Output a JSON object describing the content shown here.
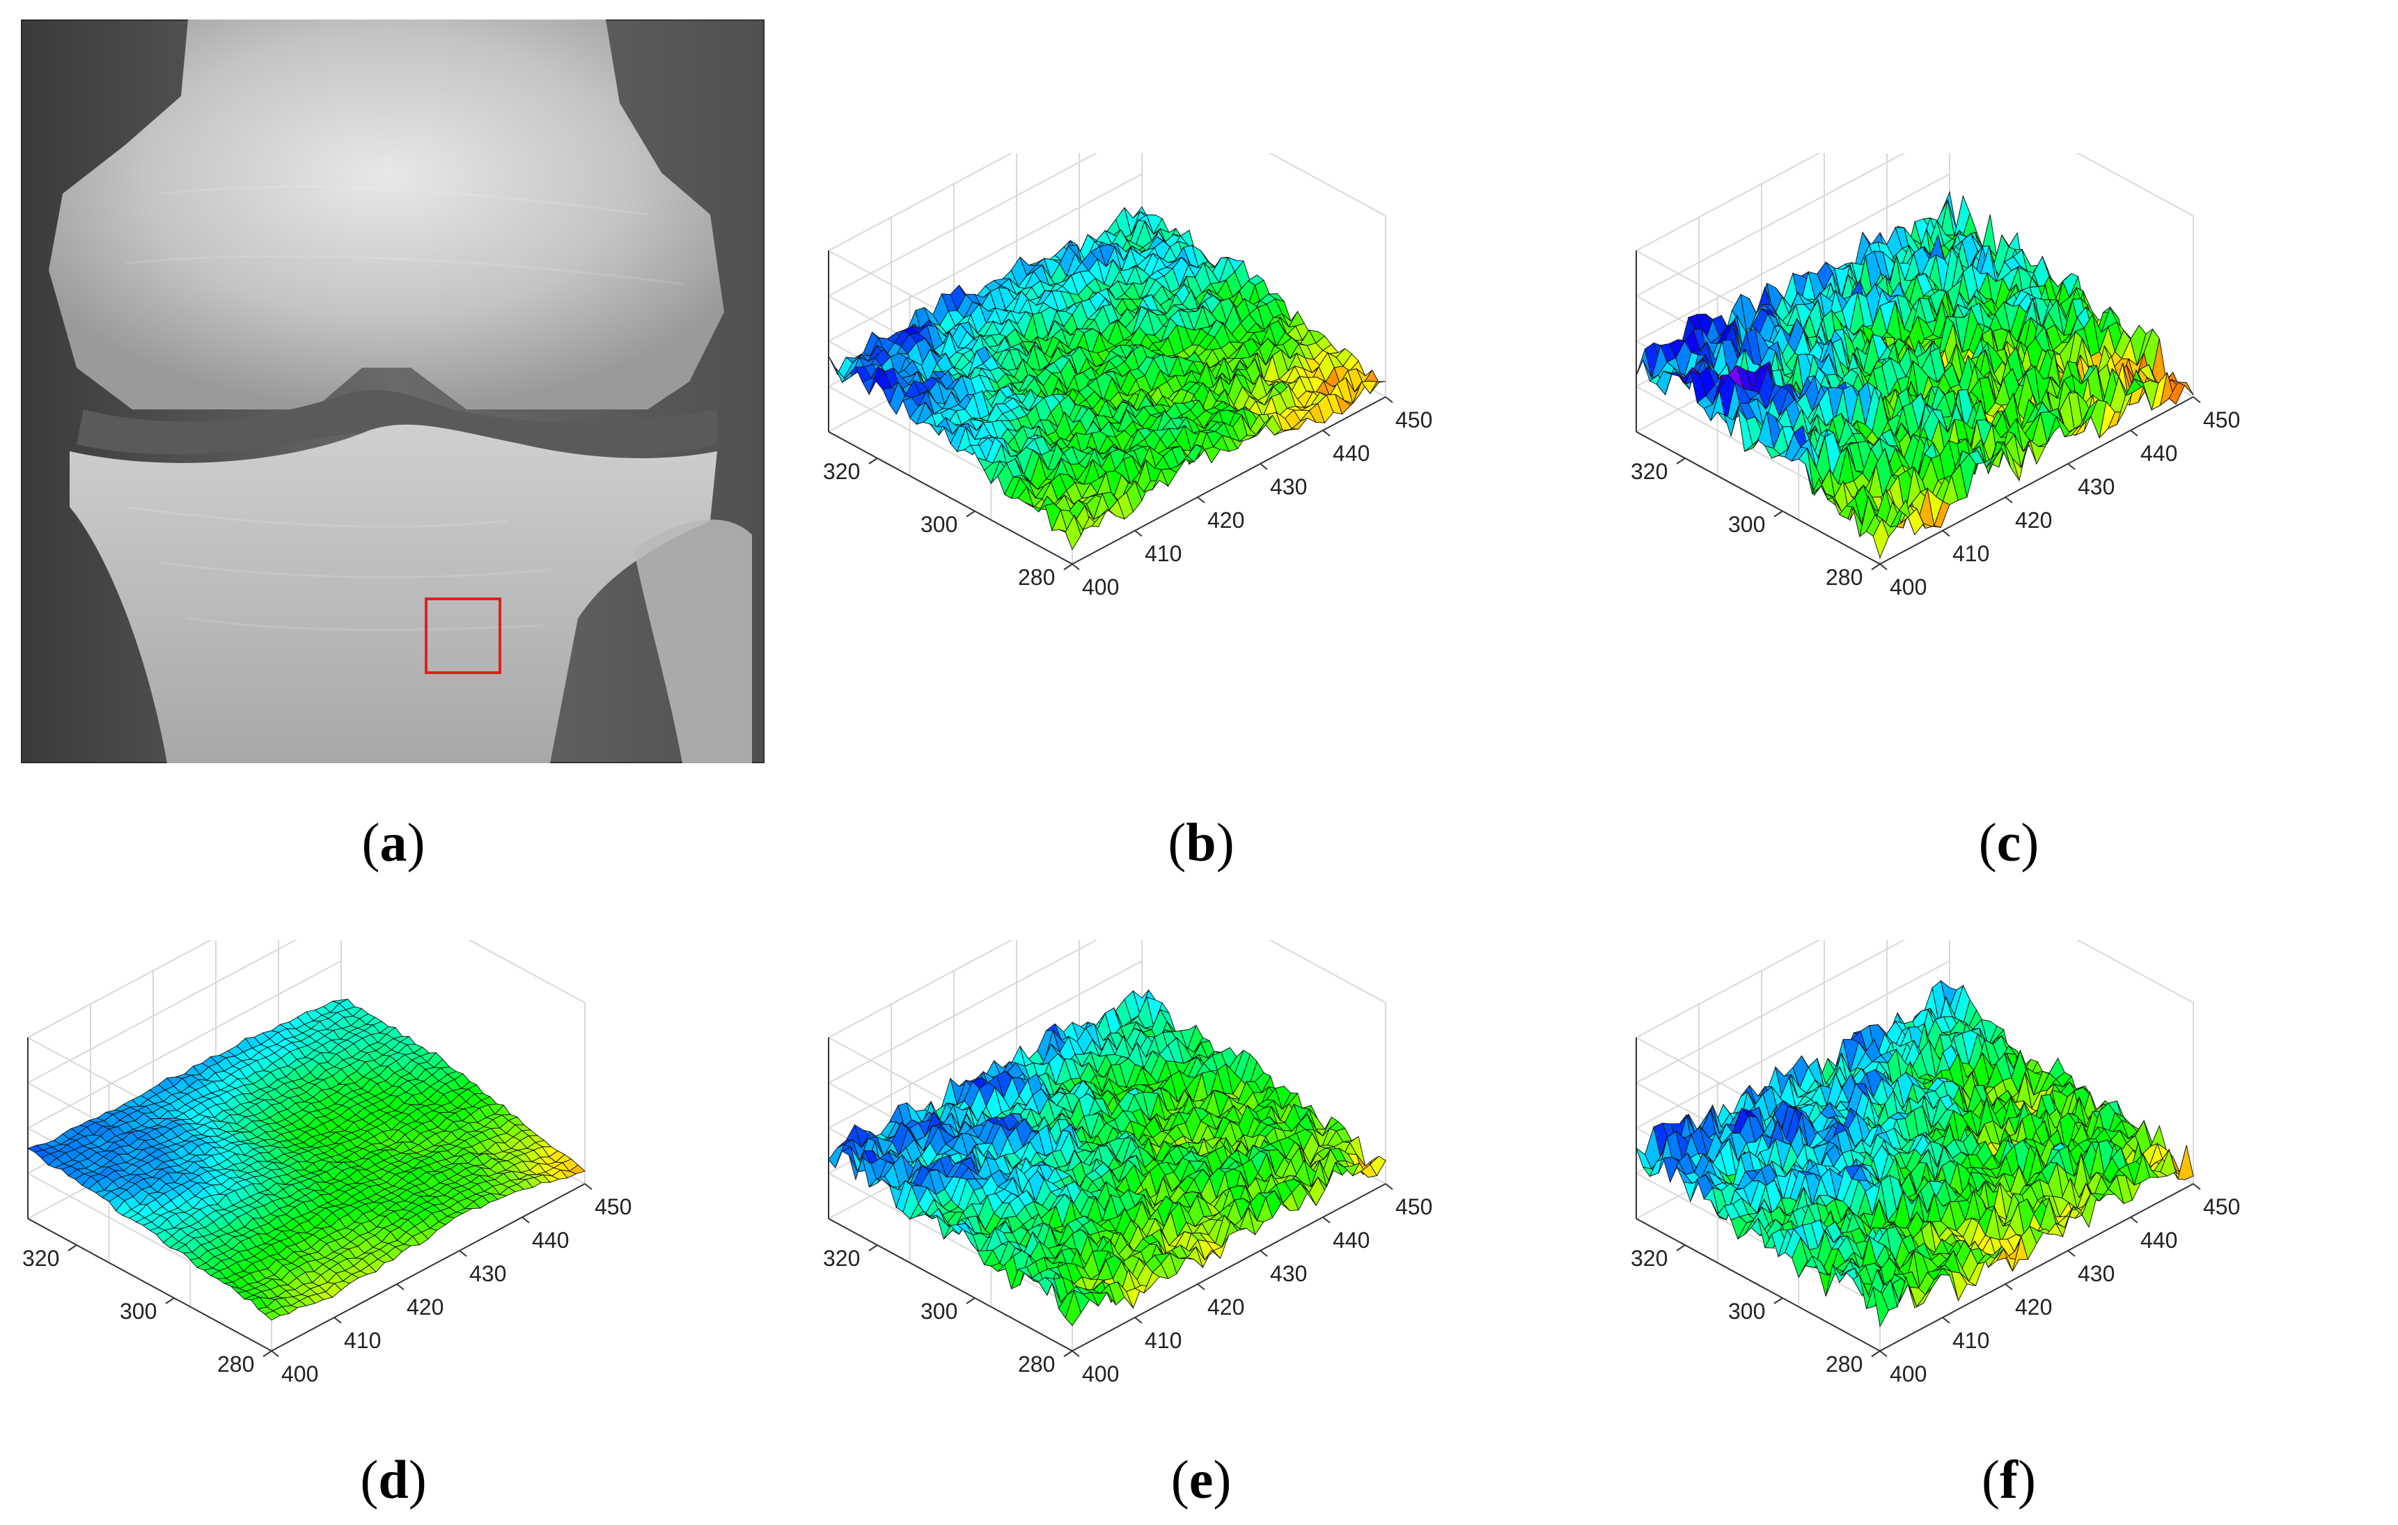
{
  "figure": {
    "panels": [
      {
        "id": "a",
        "caption_letter": "a",
        "content": "knee-xray-with-roi"
      },
      {
        "id": "b",
        "caption_letter": "b",
        "roughness": 0.55
      },
      {
        "id": "c",
        "caption_letter": "c",
        "roughness": 1.0
      },
      {
        "id": "d",
        "caption_letter": "d",
        "roughness": 0.12
      },
      {
        "id": "e",
        "caption_letter": "e",
        "roughness": 0.6
      },
      {
        "id": "f",
        "caption_letter": "f",
        "roughness": 0.8
      }
    ],
    "axes": {
      "x_ticks": [
        "400",
        "410",
        "420",
        "430",
        "440",
        "450"
      ],
      "y_ticks": [
        "280",
        "300",
        "320"
      ]
    },
    "colormap": [
      "#ff0000",
      "#ffff00",
      "#00ff00",
      "#00ffff",
      "#0000ff",
      "#ff00ff"
    ],
    "roi_color": "#e02020"
  },
  "chart_data": [
    {
      "type": "surface",
      "panel": "b",
      "x": [
        400,
        450
      ],
      "y": [
        280,
        330
      ],
      "xticks": [
        400,
        410,
        420,
        430,
        440,
        450
      ],
      "yticks": [
        280,
        300,
        320
      ]
    },
    {
      "type": "surface",
      "panel": "c",
      "x": [
        400,
        450
      ],
      "y": [
        280,
        330
      ],
      "xticks": [
        400,
        410,
        420,
        430,
        440,
        450
      ],
      "yticks": [
        280,
        300,
        320
      ]
    },
    {
      "type": "surface",
      "panel": "d",
      "x": [
        400,
        450
      ],
      "y": [
        280,
        330
      ],
      "xticks": [
        400,
        410,
        420,
        430,
        440,
        450
      ],
      "yticks": [
        280,
        300,
        320
      ]
    },
    {
      "type": "surface",
      "panel": "e",
      "x": [
        400,
        450
      ],
      "y": [
        280,
        330
      ],
      "xticks": [
        400,
        410,
        420,
        430,
        440,
        450
      ],
      "yticks": [
        280,
        300,
        320
      ]
    },
    {
      "type": "surface",
      "panel": "f",
      "x": [
        400,
        450
      ],
      "y": [
        280,
        330
      ],
      "xticks": [
        400,
        410,
        420,
        430,
        440,
        450
      ],
      "yticks": [
        280,
        300,
        320
      ]
    }
  ]
}
